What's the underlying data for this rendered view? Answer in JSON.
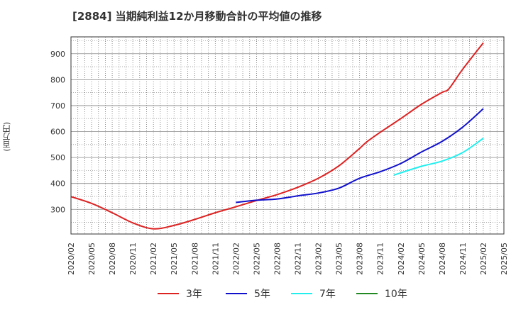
{
  "header": {
    "title": "[2884]  当期純利益12か月移動合計の平均値の推移"
  },
  "axis": {
    "y_unit_label": "(百万円)"
  },
  "chart_data": {
    "type": "line",
    "title": "[2884]  当期純利益12か月移動合計の平均値の推移",
    "ylabel": "(百万円)",
    "xlabel": "",
    "ylim": [
      205,
      965
    ],
    "yticks": [
      300,
      400,
      500,
      600,
      700,
      800,
      900
    ],
    "x_tick_labels": [
      "2020/02",
      "2020/05",
      "2020/08",
      "2020/11",
      "2021/02",
      "2021/05",
      "2021/08",
      "2021/11",
      "2022/02",
      "2022/05",
      "2022/08",
      "2022/11",
      "2023/02",
      "2023/05",
      "2023/08",
      "2023/11",
      "2024/02",
      "2024/05",
      "2024/08",
      "2024/11",
      "2025/02",
      "2025/05"
    ],
    "grid": true,
    "legend_position": "bottom",
    "series": [
      {
        "name": "3年",
        "color": "#dd2222",
        "x": [
          "2020/02",
          "2020/05",
          "2020/08",
          "2020/11",
          "2021/02",
          "2021/05",
          "2021/08",
          "2021/11",
          "2022/02",
          "2022/05",
          "2022/08",
          "2022/11",
          "2023/02",
          "2023/05",
          "2023/08",
          "2023/09",
          "2023/11",
          "2024/02",
          "2024/05",
          "2024/08",
          "2024/09",
          "2024/11",
          "2025/02"
        ],
        "values": [
          349,
          323,
          287,
          248,
          225,
          238,
          261,
          287,
          310,
          334,
          357,
          385,
          420,
          468,
          535,
          559,
          597,
          650,
          705,
          751,
          765,
          840,
          942
        ]
      },
      {
        "name": "5年",
        "color": "#1111cc",
        "x": [
          "2022/02",
          "2022/05",
          "2022/08",
          "2022/11",
          "2023/02",
          "2023/05",
          "2023/08",
          "2023/11",
          "2024/02",
          "2024/05",
          "2024/08",
          "2024/11",
          "2025/02"
        ],
        "values": [
          327,
          335,
          340,
          352,
          363,
          382,
          420,
          445,
          477,
          521,
          562,
          617,
          688
        ]
      },
      {
        "name": "7年",
        "color": "#22eeee",
        "x": [
          "2024/01",
          "2024/02",
          "2024/05",
          "2024/08",
          "2024/11",
          "2025/02"
        ],
        "values": [
          432,
          441,
          466,
          486,
          519,
          574
        ]
      },
      {
        "name": "10年",
        "color": "#228822",
        "x": [],
        "values": []
      }
    ]
  }
}
